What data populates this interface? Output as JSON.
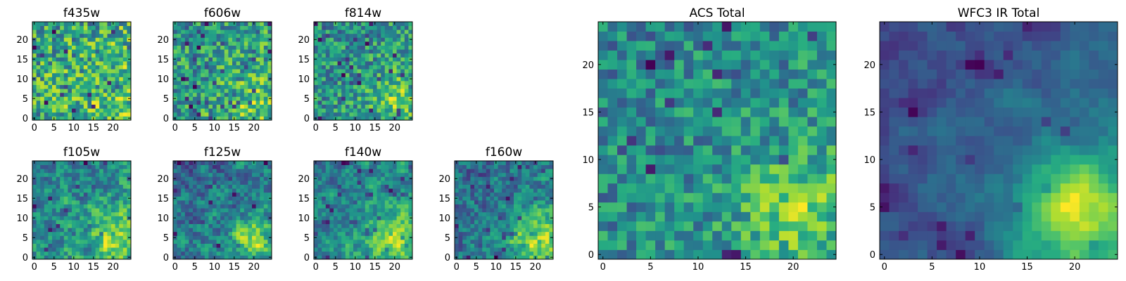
{
  "chart_data": [
    {
      "type": "heatmap",
      "title": "f435w",
      "size": 25,
      "seed": 11,
      "bright": [
        0.1,
        0.2,
        0.0
      ],
      "dark": 0.06,
      "noise": 1.0,
      "smooth": 0,
      "xticks": [
        "0",
        "5",
        "10",
        "15",
        "20"
      ],
      "yticks": [
        "0",
        "5",
        "10",
        "15",
        "20"
      ],
      "xlim": [
        0,
        25
      ],
      "ylim": [
        0,
        25
      ]
    },
    {
      "type": "heatmap",
      "title": "f606w",
      "size": 25,
      "seed": 23,
      "bright": [
        0.35,
        0.5,
        0.1
      ],
      "dark": 0.07,
      "noise": 0.9,
      "smooth": 0,
      "xticks": [
        "0",
        "5",
        "10",
        "15",
        "20"
      ],
      "yticks": [
        "0",
        "5",
        "10",
        "15",
        "20"
      ],
      "xlim": [
        0,
        25
      ],
      "ylim": [
        0,
        25
      ]
    },
    {
      "type": "heatmap",
      "title": "f814w",
      "size": 25,
      "seed": 37,
      "bright": [
        0.5,
        0.6,
        0.15
      ],
      "dark": 0.07,
      "noise": 0.85,
      "smooth": 0,
      "xticks": [
        "0",
        "5",
        "10",
        "15",
        "20"
      ],
      "yticks": [
        "0",
        "5",
        "10",
        "15",
        "20"
      ],
      "xlim": [
        0,
        25
      ],
      "ylim": [
        0,
        25
      ]
    },
    {
      "type": "heatmap",
      "title": "f105w",
      "size": 25,
      "seed": 41,
      "bright": [
        0.45,
        0.35,
        0.2
      ],
      "dark": 0.05,
      "noise": 0.7,
      "smooth": 1,
      "xticks": [
        "0",
        "5",
        "10",
        "15",
        "20"
      ],
      "yticks": [
        "0",
        "5",
        "10",
        "15",
        "20"
      ],
      "xlim": [
        0,
        25
      ],
      "ylim": [
        0,
        25
      ]
    },
    {
      "type": "heatmap",
      "title": "f125w",
      "size": 25,
      "seed": 53,
      "bright": [
        0.5,
        0.35,
        0.2
      ],
      "dark": 0.05,
      "noise": 0.7,
      "smooth": 1,
      "xticks": [
        "0",
        "5",
        "10",
        "15",
        "20"
      ],
      "yticks": [
        "0",
        "5",
        "10",
        "15",
        "20"
      ],
      "xlim": [
        0,
        25
      ],
      "ylim": [
        0,
        25
      ]
    },
    {
      "type": "heatmap",
      "title": "f140w",
      "size": 25,
      "seed": 67,
      "bright": [
        0.55,
        0.35,
        0.25
      ],
      "dark": 0.05,
      "noise": 0.65,
      "smooth": 1,
      "xticks": [
        "0",
        "5",
        "10",
        "15",
        "20"
      ],
      "yticks": [
        "0",
        "5",
        "10",
        "15",
        "20"
      ],
      "xlim": [
        0,
        25
      ],
      "ylim": [
        0,
        25
      ]
    },
    {
      "type": "heatmap",
      "title": "f160w",
      "size": 25,
      "seed": 79,
      "bright": [
        0.6,
        0.3,
        0.3
      ],
      "dark": 0.06,
      "noise": 0.6,
      "smooth": 1,
      "xticks": [
        "0",
        "5",
        "10",
        "15",
        "20"
      ],
      "yticks": [
        "0",
        "5",
        "10",
        "15",
        "20"
      ],
      "xlim": [
        0,
        25
      ],
      "ylim": [
        0,
        25
      ]
    },
    {
      "type": "heatmap",
      "title": "ACS Total",
      "size": 25,
      "seed": 97,
      "bright": [
        0.65,
        0.5,
        0.15
      ],
      "dark": 0.04,
      "noise": 0.75,
      "smooth": 0,
      "xticks": [
        "0",
        "5",
        "10",
        "15",
        "20"
      ],
      "yticks": [
        "0",
        "5",
        "10",
        "15",
        "20"
      ],
      "xlim": [
        0,
        25
      ],
      "ylim": [
        0,
        25
      ]
    },
    {
      "type": "heatmap",
      "title": "WFC3 IR Total",
      "size": 25,
      "seed": 113,
      "bright": [
        0.7,
        0.25,
        0.35
      ],
      "dark": 0.04,
      "noise": 0.35,
      "smooth": 2,
      "xticks": [
        "0",
        "5",
        "10",
        "15",
        "20"
      ],
      "yticks": [
        "0",
        "5",
        "10",
        "15",
        "20"
      ],
      "xlim": [
        0,
        25
      ],
      "ylim": [
        0,
        25
      ]
    }
  ],
  "colormap": {
    "name": "viridis",
    "low": "#440154",
    "mid": "#21918c",
    "high": "#fde725"
  }
}
